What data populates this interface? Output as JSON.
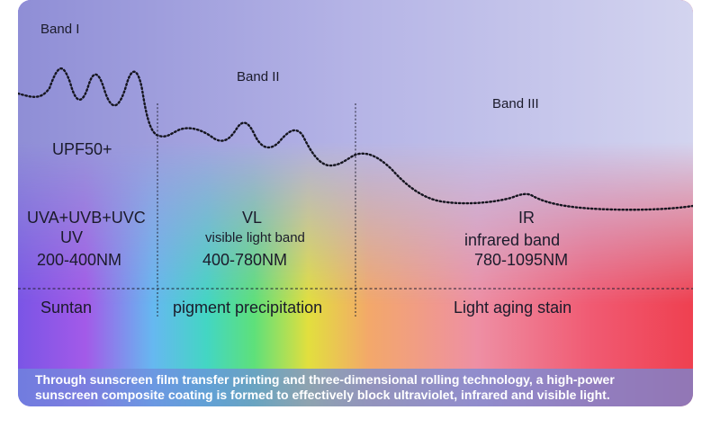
{
  "bands": {
    "band1": "Band I",
    "band2": "Band II",
    "band3": "Band III"
  },
  "protection": "UPF50+",
  "uv": {
    "types": "UVA+UVB+UVC",
    "name": "UV",
    "range": "200-400NM",
    "effect": "Suntan"
  },
  "vl": {
    "name": "VL",
    "desc": "visible light band",
    "range": "400-780NM",
    "effect": "pigment precipitation"
  },
  "ir": {
    "name": "IR",
    "desc": "infrared band",
    "range": "780-1095NM",
    "effect": "Light aging stain"
  },
  "footer": {
    "line1": "Through sunscreen film transfer printing and three-dimensional rolling technology, a high-power",
    "line2": "sunscreen composite coating is formed to effectively block ultraviolet, infrared and visible light."
  }
}
